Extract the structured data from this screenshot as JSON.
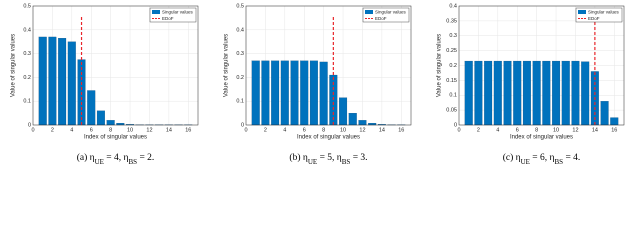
{
  "chart_data": [
    {
      "type": "bar",
      "xlabel": "Index of singular values",
      "ylabel": "Value of singular values",
      "caption_parts": [
        "(a) η",
        "UE",
        " = 4, η",
        "BS",
        " = 2."
      ],
      "x": [
        1,
        2,
        3,
        4,
        5,
        6,
        7,
        8,
        9,
        10,
        11,
        12,
        13,
        14,
        15,
        16
      ],
      "series": [
        {
          "name": "Singular values",
          "color": "#0072bd",
          "values": [
            0.37,
            0.37,
            0.365,
            0.35,
            0.275,
            0.145,
            0.06,
            0.02,
            0.008,
            0.003,
            0.001,
            0.001,
            0.001,
            0.001,
            0.001,
            0.001
          ]
        }
      ],
      "edof": {
        "name": "EDoF",
        "color": "#e8262b",
        "x": 5,
        "y": [
          0,
          0.46
        ]
      },
      "xlim": [
        0,
        17
      ],
      "xticks": [
        0,
        2,
        4,
        6,
        8,
        10,
        12,
        14,
        16
      ],
      "ylim": [
        0,
        0.5
      ],
      "yticks": [
        0,
        0.1,
        0.2,
        0.3,
        0.4,
        0.5
      ],
      "grid": true,
      "legend": "top-right"
    },
    {
      "type": "bar",
      "xlabel": "Index of singular values",
      "ylabel": "Value of singular values",
      "caption_parts": [
        "(b) η",
        "UE",
        " = 5, η",
        "BS",
        " = 3."
      ],
      "x": [
        1,
        2,
        3,
        4,
        5,
        6,
        7,
        8,
        9,
        10,
        11,
        12,
        13,
        14,
        15,
        16
      ],
      "series": [
        {
          "name": "Singular values",
          "color": "#0072bd",
          "values": [
            0.27,
            0.27,
            0.27,
            0.27,
            0.27,
            0.27,
            0.27,
            0.265,
            0.21,
            0.115,
            0.05,
            0.02,
            0.008,
            0.003,
            0.001,
            0.001
          ]
        }
      ],
      "edof": {
        "name": "EDoF",
        "color": "#e8262b",
        "x": 9,
        "y": [
          0,
          0.46
        ]
      },
      "xlim": [
        0,
        17
      ],
      "xticks": [
        0,
        2,
        4,
        6,
        8,
        10,
        12,
        14,
        16
      ],
      "ylim": [
        0,
        0.5
      ],
      "yticks": [
        0,
        0.1,
        0.2,
        0.3,
        0.4,
        0.5
      ],
      "grid": true,
      "legend": "top-right"
    },
    {
      "type": "bar",
      "xlabel": "Index of singular values",
      "ylabel": "Value of singular values",
      "caption_parts": [
        "(c) η",
        "UE",
        " = 6, η",
        "BS",
        " = 4."
      ],
      "x": [
        1,
        2,
        3,
        4,
        5,
        6,
        7,
        8,
        9,
        10,
        11,
        12,
        13,
        14,
        15,
        16
      ],
      "series": [
        {
          "name": "Singular values",
          "color": "#0072bd",
          "values": [
            0.215,
            0.215,
            0.215,
            0.215,
            0.215,
            0.215,
            0.215,
            0.215,
            0.215,
            0.215,
            0.215,
            0.215,
            0.213,
            0.18,
            0.08,
            0.025
          ]
        }
      ],
      "edof": {
        "name": "EDoF",
        "color": "#e8262b",
        "x": 14,
        "y": [
          0,
          0.37
        ]
      },
      "xlim": [
        0,
        17
      ],
      "xticks": [
        0,
        2,
        4,
        6,
        8,
        10,
        12,
        14,
        16
      ],
      "ylim": [
        0,
        0.4
      ],
      "yticks": [
        0,
        0.05,
        0.1,
        0.15,
        0.2,
        0.25,
        0.3,
        0.35,
        0.4
      ],
      "grid": true,
      "legend": "top-right"
    }
  ]
}
